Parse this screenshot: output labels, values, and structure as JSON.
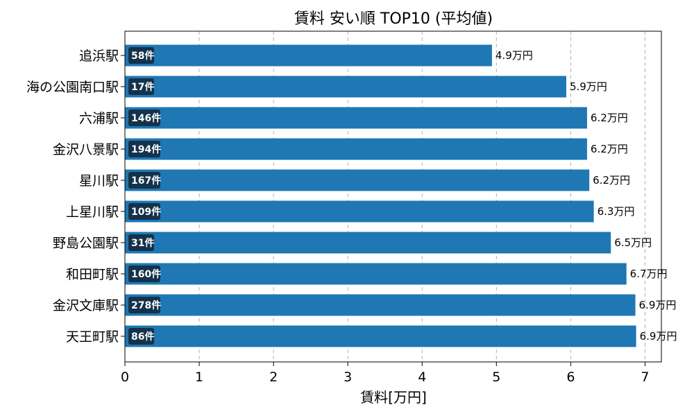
{
  "chart_data": {
    "type": "bar",
    "orientation": "horizontal",
    "title": "賃料 安い順 TOP10 (平均値)",
    "xlabel": "賃料[万円]",
    "ylabel": "",
    "xlim": [
      0,
      7.22
    ],
    "xticks": [
      0,
      1,
      2,
      3,
      4,
      5,
      6,
      7
    ],
    "grid": "x-dashed",
    "bar_color": "#1f77b4",
    "count_box_color": "#13324b",
    "categories": [
      "追浜駅",
      "海の公園南口駅",
      "六浦駅",
      "金沢八景駅",
      "星川駅",
      "上星川駅",
      "野島公園駅",
      "和田町駅",
      "金沢文庫駅",
      "天王町駅"
    ],
    "values": [
      4.94,
      5.94,
      6.22,
      6.22,
      6.25,
      6.31,
      6.54,
      6.75,
      6.87,
      6.88
    ],
    "value_labels": [
      "4.9万円",
      "5.9万円",
      "6.2万円",
      "6.2万円",
      "6.2万円",
      "6.3万円",
      "6.5万円",
      "6.7万円",
      "6.9万円",
      "6.9万円"
    ],
    "count_labels": [
      "58件",
      "17件",
      "146件",
      "194件",
      "167件",
      "109件",
      "31件",
      "160件",
      "278件",
      "86件"
    ]
  }
}
